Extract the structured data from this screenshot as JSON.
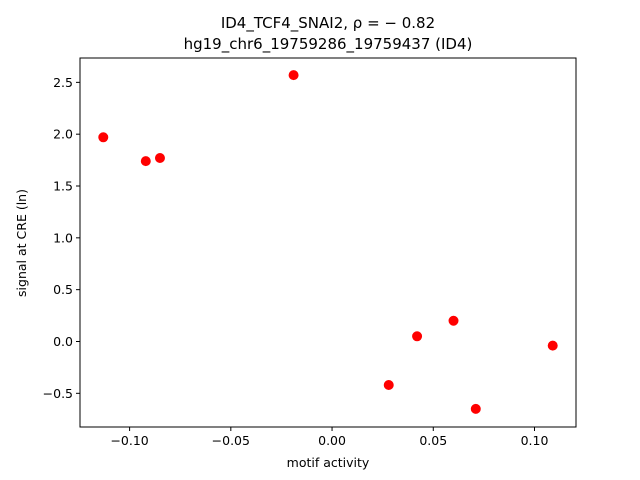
{
  "chart_data": {
    "type": "scatter",
    "title_line1": "ID4_TCF4_SNAI2, ρ = − 0.82",
    "title_line2": "hg19_chr6_19759286_19759437 (ID4)",
    "xlabel": "motif activity",
    "ylabel": "signal at CRE (ln)",
    "xlim": [
      -0.1245,
      0.1205
    ],
    "ylim": [
      -0.825,
      2.735
    ],
    "xticks": [
      -0.1,
      -0.05,
      0.0,
      0.05,
      0.1
    ],
    "xtick_labels": [
      "−0.10",
      "−0.05",
      "0.00",
      "0.05",
      "0.10"
    ],
    "yticks": [
      -0.5,
      0.0,
      0.5,
      1.0,
      1.5,
      2.0,
      2.5
    ],
    "ytick_labels": [
      "−0.5",
      "0.0",
      "0.5",
      "1.0",
      "1.5",
      "2.0",
      "2.5"
    ],
    "grid": false,
    "marker_color": "#ff0000",
    "points": [
      {
        "x": -0.113,
        "y": 1.97
      },
      {
        "x": -0.092,
        "y": 1.74
      },
      {
        "x": -0.085,
        "y": 1.77
      },
      {
        "x": -0.019,
        "y": 2.57
      },
      {
        "x": 0.028,
        "y": -0.42
      },
      {
        "x": 0.042,
        "y": 0.05
      },
      {
        "x": 0.06,
        "y": 0.2
      },
      {
        "x": 0.071,
        "y": -0.65
      },
      {
        "x": 0.109,
        "y": -0.04
      }
    ]
  }
}
